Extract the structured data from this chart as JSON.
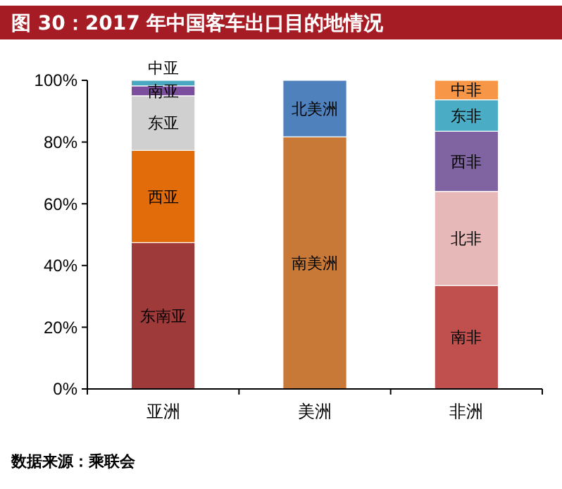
{
  "chart_data": {
    "type": "bar",
    "title": "图 30：2017 年中国客车出口目的地情况",
    "categories": [
      "亚洲",
      "美洲",
      "非洲"
    ],
    "stacked": true,
    "ylim": [
      0,
      100
    ],
    "yticks": [
      {
        "value": 0,
        "label": "0%"
      },
      {
        "value": 20,
        "label": "20%"
      },
      {
        "value": 40,
        "label": "40%"
      },
      {
        "value": 60,
        "label": "60%"
      },
      {
        "value": 80,
        "label": "80%"
      },
      {
        "value": 100,
        "label": "100%"
      }
    ],
    "series": [
      {
        "name": "东南亚",
        "color": "#9e3a3a",
        "values": [
          47.4,
          null,
          null
        ]
      },
      {
        "name": "西亚",
        "color": "#e36c0a",
        "values": [
          29.9,
          null,
          null
        ]
      },
      {
        "name": "东亚",
        "color": "#d0d0d0",
        "values": [
          17.7,
          null,
          null
        ]
      },
      {
        "name": "南亚",
        "color": "#7b4f9e",
        "values": [
          3.2,
          null,
          null
        ]
      },
      {
        "name": "中亚",
        "color": "#4aa8c0",
        "values": [
          1.8,
          null,
          null
        ]
      },
      {
        "name": "南美洲",
        "color": "#c87837",
        "values": [
          null,
          81.7,
          null
        ]
      },
      {
        "name": "北美洲",
        "color": "#4f81bd",
        "values": [
          null,
          18.3,
          null
        ]
      },
      {
        "name": "南非",
        "color": "#c0504d",
        "values": [
          null,
          null,
          33.5
        ]
      },
      {
        "name": "北非",
        "color": "#e6b9b8",
        "values": [
          null,
          null,
          30.5
        ]
      },
      {
        "name": "西非",
        "color": "#8064a2",
        "values": [
          null,
          null,
          19.5
        ]
      },
      {
        "name": "东非",
        "color": "#4bacc6",
        "values": [
          null,
          null,
          10.2
        ]
      },
      {
        "name": "中非",
        "color": "#f79646",
        "values": [
          null,
          null,
          6.3
        ]
      }
    ],
    "grid": false,
    "annotations": [
      "数据来源：乘联会"
    ]
  }
}
